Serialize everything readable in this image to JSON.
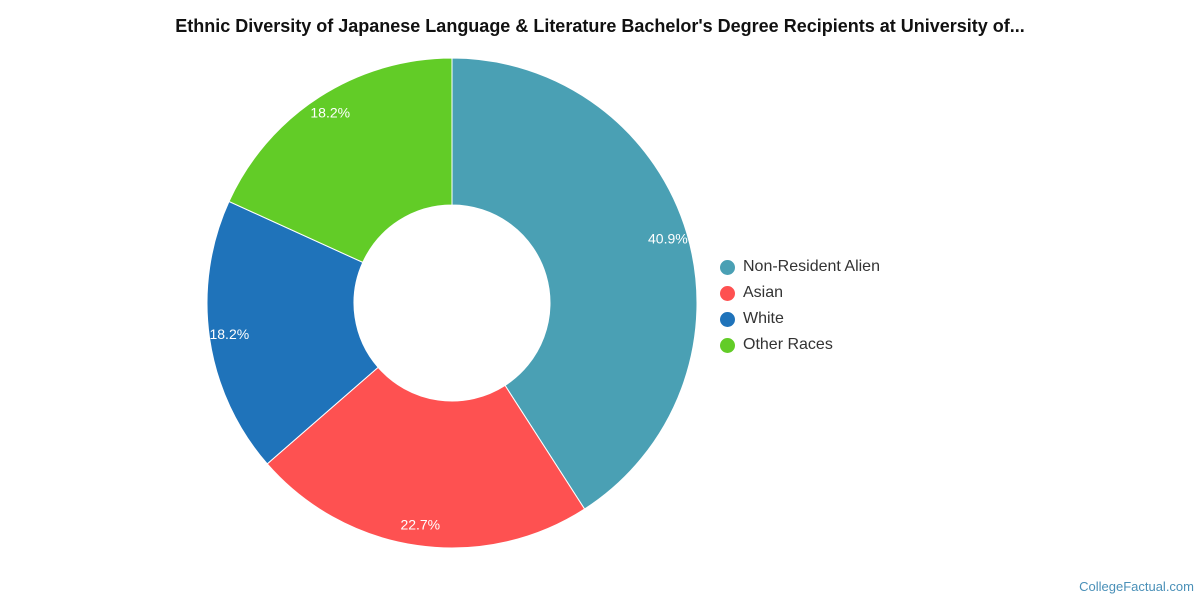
{
  "chart_data": {
    "type": "pie",
    "title": "Ethnic Diversity of Japanese Language & Literature Bachelor's Degree Recipients at University of...",
    "donut": true,
    "legend_position": "right",
    "slices": [
      {
        "name": "Non-Resident Alien",
        "value": 40.9,
        "label": "40.9%",
        "color": "#4aa0b4"
      },
      {
        "name": "Asian",
        "value": 22.7,
        "label": "22.7%",
        "color": "#fe5151"
      },
      {
        "name": "White",
        "value": 18.2,
        "label": "18.2%",
        "color": "#1f73ba"
      },
      {
        "name": "Other Races",
        "value": 18.2,
        "label": "18.2%",
        "color": "#62cc27"
      }
    ]
  },
  "credit": "CollegeFactual.com"
}
